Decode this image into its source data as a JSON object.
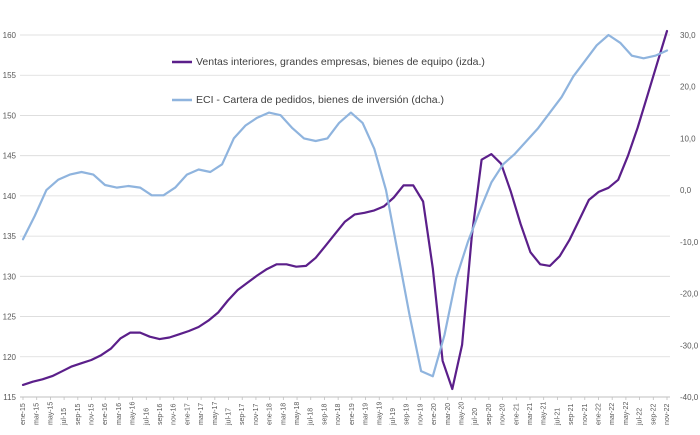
{
  "chart_data": {
    "type": "line",
    "title": "",
    "grid": "horizontal",
    "legend_position": "top-center",
    "y_left": {
      "min": 115,
      "max": 160,
      "step": 5,
      "ticks": [
        "115",
        "120",
        "125",
        "130",
        "135",
        "140",
        "145",
        "150",
        "155",
        "160"
      ]
    },
    "y_right": {
      "min": -40,
      "max": 30,
      "step": 10,
      "ticks": [
        "-40,0",
        "-30,0",
        "-20,0",
        "-10,0",
        "0,0",
        "10,0",
        "20,0",
        "30,0"
      ]
    },
    "x_labels": [
      "ene-15",
      "mar-15",
      "may-15",
      "jul-15",
      "sep-15",
      "nov-15",
      "ene-16",
      "mar-16",
      "may-16",
      "jul-16",
      "sep-16",
      "nov-16",
      "ene-17",
      "mar-17",
      "may-17",
      "jul-17",
      "sep-17",
      "nov-17",
      "ene-18",
      "mar-18",
      "may-18",
      "jul-18",
      "sep-18",
      "nov-18",
      "ene-19",
      "mar-19",
      "may-19",
      "jul-19",
      "sep-19",
      "nov-19",
      "ene-20",
      "mar-20",
      "may-20",
      "jul-20",
      "sep-20",
      "nov-20",
      "ene-21",
      "mar-21",
      "may-21",
      "jul-21",
      "sep-21",
      "nov-21",
      "ene-22",
      "mar-22",
      "may-22",
      "jul-22",
      "sep-22",
      "nov-22"
    ],
    "series": [
      {
        "name": "Ventas interiores, grandes empresas, bienes de equipo (izda.)",
        "axis": "left",
        "color": "#5b1f8a",
        "values": [
          116.5,
          116.9,
          117.2,
          117.6,
          118.2,
          118.8,
          119.2,
          119.6,
          120.2,
          121.0,
          122.3,
          123.0,
          123.0,
          122.5,
          122.2,
          122.4,
          122.8,
          123.2,
          123.7,
          124.5,
          125.5,
          127.0,
          128.3,
          129.2,
          130.1,
          130.9,
          131.5,
          131.5,
          131.2,
          131.3,
          132.3,
          133.8,
          135.3,
          136.8,
          137.7,
          137.9,
          138.2,
          138.7,
          139.8,
          141.3,
          141.3,
          139.3,
          131.0,
          119.5,
          116.0,
          121.5,
          135.0,
          144.5,
          145.2,
          144.0,
          140.5,
          136.5,
          133.0,
          131.5,
          131.3,
          132.5,
          134.5,
          137.0,
          139.5,
          140.5,
          141.0,
          142.0,
          145.0,
          148.5,
          152.5,
          156.5,
          160.5
        ]
      },
      {
        "name": "ECI - Cartera de pedidos, bienes de inversión (dcha.)",
        "axis": "right",
        "color": "#8fb4de",
        "values": [
          -9.5,
          -5.0,
          0.0,
          2.0,
          3.0,
          3.5,
          3.0,
          1.0,
          0.5,
          0.8,
          0.5,
          -1.0,
          -1.0,
          0.5,
          3.0,
          4.0,
          3.5,
          5.0,
          10.0,
          12.5,
          14.0,
          15.0,
          14.5,
          12.0,
          10.0,
          9.5,
          10.0,
          13.0,
          15.0,
          13.0,
          8.0,
          0.0,
          -12.0,
          -24.0,
          -35.0,
          -36.0,
          -28.0,
          -17.0,
          -10.0,
          -4.0,
          1.5,
          5.0,
          7.0,
          9.5,
          12.0,
          15.0,
          18.0,
          22.0,
          25.0,
          28.0,
          30.0,
          28.5,
          26.0,
          25.5,
          26.0,
          27.0
        ]
      }
    ]
  }
}
